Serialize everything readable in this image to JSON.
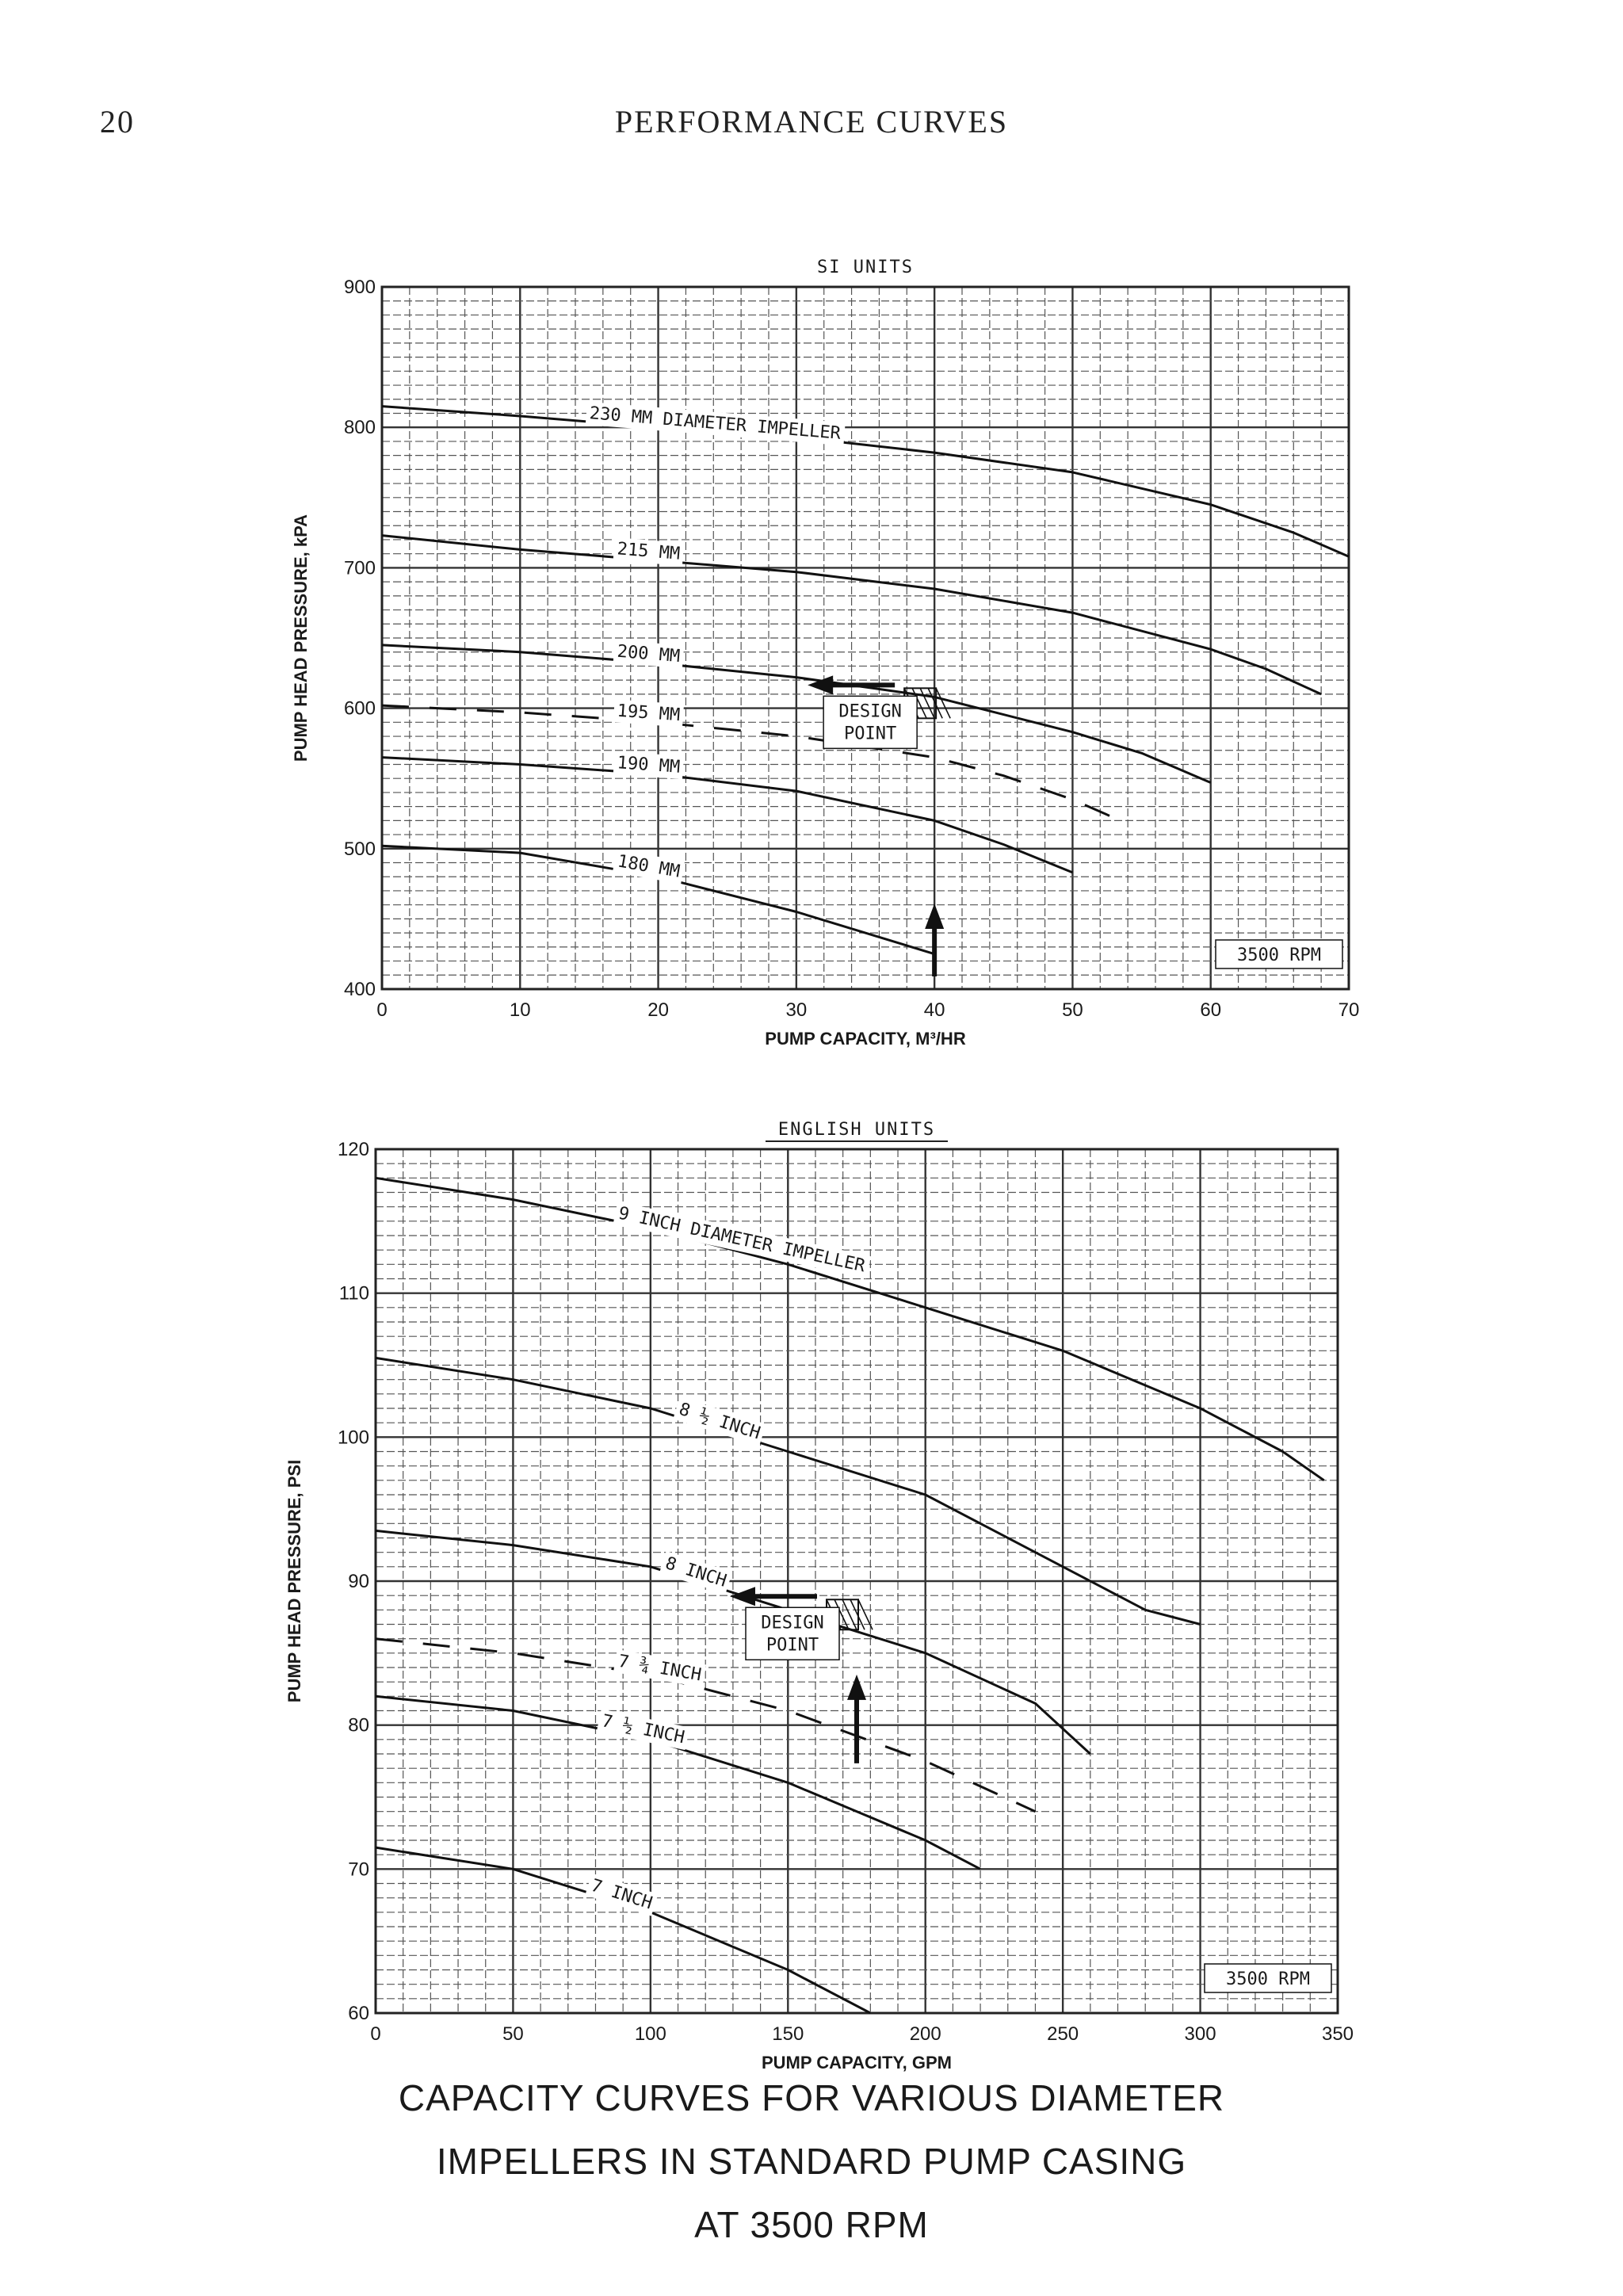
{
  "page": {
    "number": "20",
    "title": "PERFORMANCE CURVES",
    "caption_lines": [
      "CAPACITY CURVES FOR VARIOUS DIAMETER",
      "IMPELLERS IN STANDARD PUMP CASING",
      "AT 3500 RPM"
    ]
  },
  "chart_data": [
    {
      "type": "line",
      "title": "SI UNITS",
      "xlabel": "PUMP CAPACITY, M³/HR",
      "ylabel": "PUMP HEAD PRESSURE, kPA",
      "xlim": [
        0,
        70
      ],
      "ylim": [
        400,
        900
      ],
      "xticks": [
        0,
        10,
        20,
        30,
        40,
        50,
        60,
        70
      ],
      "yticks": [
        400,
        500,
        600,
        700,
        800,
        900
      ],
      "grid": true,
      "rpm_label": "3500 RPM",
      "design_point": {
        "x": 40,
        "y": 612,
        "label_lines": [
          "DESIGN",
          "POINT"
        ]
      },
      "series": [
        {
          "name": "230 MM DIAMETER IMPELLER",
          "style": "solid",
          "label_at": 15,
          "x": [
            0,
            10,
            20,
            30,
            40,
            50,
            60,
            66,
            70
          ],
          "y": [
            815,
            808,
            800,
            793,
            782,
            768,
            745,
            725,
            708
          ]
        },
        {
          "name": "215 MM",
          "style": "solid",
          "label_at": 17,
          "x": [
            0,
            10,
            20,
            30,
            40,
            50,
            60,
            64,
            68
          ],
          "y": [
            723,
            713,
            705,
            697,
            685,
            668,
            642,
            628,
            610
          ]
        },
        {
          "name": "200 MM",
          "style": "solid",
          "label_at": 17,
          "x": [
            0,
            10,
            20,
            30,
            40,
            50,
            55,
            60
          ],
          "y": [
            645,
            640,
            632,
            622,
            608,
            583,
            568,
            547
          ]
        },
        {
          "name": "195 MM",
          "style": "dashed",
          "label_at": 17,
          "x": [
            0,
            10,
            20,
            30,
            40,
            45,
            50,
            53
          ],
          "y": [
            602,
            597,
            590,
            580,
            565,
            552,
            535,
            522
          ]
        },
        {
          "name": "190 MM",
          "style": "solid",
          "label_at": 17,
          "x": [
            0,
            10,
            20,
            30,
            40,
            45,
            50
          ],
          "y": [
            565,
            560,
            553,
            541,
            520,
            503,
            483
          ]
        },
        {
          "name": "180 MM",
          "style": "solid",
          "label_at": 17,
          "x": [
            0,
            10,
            20,
            30,
            40
          ],
          "y": [
            502,
            497,
            480,
            455,
            425
          ]
        }
      ]
    },
    {
      "type": "line",
      "title": "ENGLISH UNITS",
      "xlabel": "PUMP CAPACITY, GPM",
      "ylabel": "PUMP HEAD PRESSURE, PSI",
      "xlim": [
        0,
        350
      ],
      "ylim": [
        60,
        120
      ],
      "xticks": [
        0,
        50,
        100,
        150,
        200,
        250,
        300,
        350
      ],
      "yticks": [
        60,
        70,
        80,
        90,
        100,
        110,
        120
      ],
      "grid": true,
      "rpm_label": "3500 RPM",
      "design_point": {
        "x": 175,
        "y": 88.5,
        "label_lines": [
          "DESIGN",
          "POINT"
        ]
      },
      "series": [
        {
          "name": "9 INCH DIAMETER IMPELLER",
          "style": "solid",
          "label_at": 88,
          "x": [
            0,
            50,
            100,
            150,
            200,
            250,
            300,
            330,
            345
          ],
          "y": [
            118,
            116.5,
            114.5,
            112,
            109,
            106,
            102,
            99,
            97
          ]
        },
        {
          "name": "8 ½ INCH",
          "style": "solid",
          "label_at": 110,
          "x": [
            0,
            50,
            100,
            150,
            200,
            250,
            280,
            300
          ],
          "y": [
            105.5,
            104,
            102,
            99,
            96,
            91,
            88,
            87
          ]
        },
        {
          "name": "8 INCH",
          "style": "solid",
          "label_at": 105,
          "x": [
            0,
            50,
            100,
            150,
            200,
            240,
            260
          ],
          "y": [
            93.5,
            92.5,
            91,
            88,
            85,
            81.5,
            78
          ]
        },
        {
          "name": "7 ¾ INCH",
          "style": "dashed",
          "label_at": 88,
          "x": [
            0,
            50,
            100,
            150,
            200,
            240
          ],
          "y": [
            86,
            85,
            83.5,
            81,
            77.5,
            74
          ]
        },
        {
          "name": "7 ½ INCH",
          "style": "solid",
          "label_at": 82,
          "x": [
            0,
            50,
            100,
            150,
            200,
            220
          ],
          "y": [
            82,
            81,
            79,
            76,
            72,
            70
          ]
        },
        {
          "name": "7 INCH",
          "style": "solid",
          "label_at": 78,
          "x": [
            0,
            50,
            100,
            150,
            180
          ],
          "y": [
            71.5,
            70,
            67,
            63,
            60
          ]
        }
      ]
    }
  ]
}
